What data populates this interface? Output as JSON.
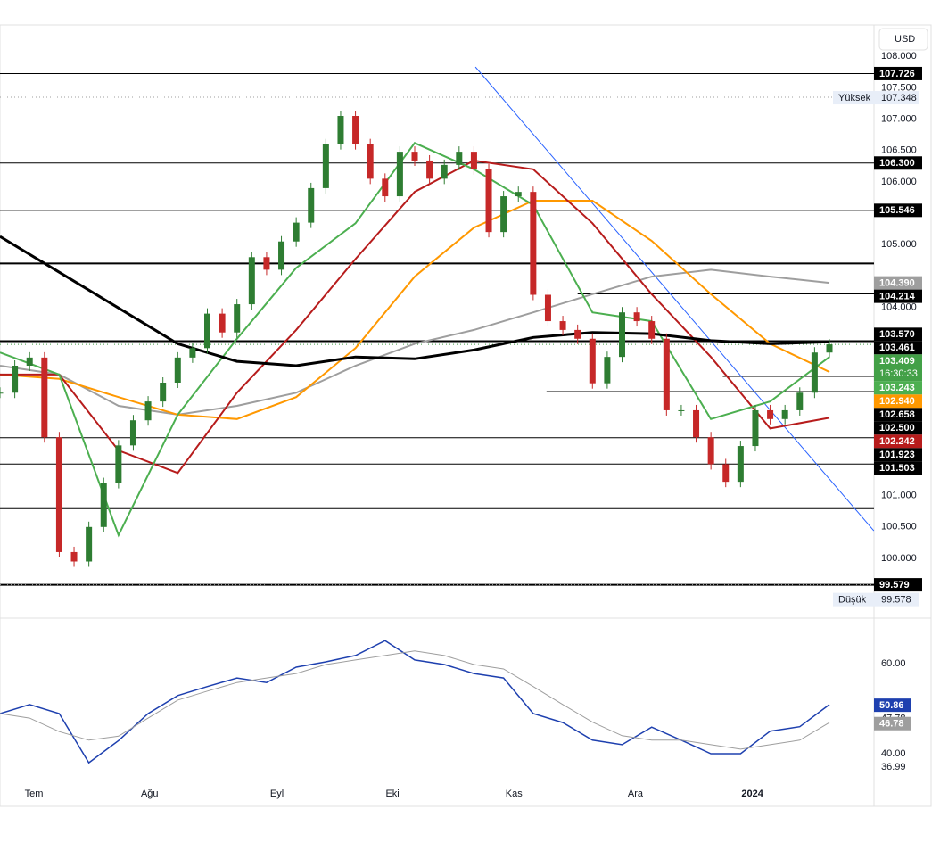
{
  "chart_data": {
    "type": "candlestick",
    "currency": "USD",
    "close": [
      102.64,
      103.07,
      103.2,
      101.93,
      100.1,
      99.95,
      100.5,
      101.2,
      101.8,
      102.2,
      102.5,
      102.8,
      103.2,
      103.35,
      103.9,
      103.6,
      104.05,
      104.8,
      104.6,
      105.05,
      105.35,
      105.9,
      106.6,
      107.05,
      106.6,
      106.05,
      105.77,
      106.48,
      106.34,
      106.05,
      106.27,
      106.48,
      106.2,
      105.2,
      105.77,
      105.84,
      104.2,
      103.78,
      103.64,
      103.5,
      102.79,
      103.21,
      103.92,
      103.78,
      103.5,
      102.36,
      102.36,
      101.93,
      101.5,
      101.22,
      101.79,
      102.36,
      102.22,
      102.36,
      102.64,
      103.28,
      103.41
    ],
    "up_color": "#2e7d32",
    "down_color": "#c62828",
    "ylim": [
      99.09,
      108.5
    ],
    "yticks": [
      {
        "value": 108,
        "label": "108.000"
      },
      {
        "value": 107.5,
        "label": "107.500"
      },
      {
        "value": 107,
        "label": "107.000"
      },
      {
        "value": 106.5,
        "label": "106.500"
      },
      {
        "value": 106,
        "label": "106.000"
      },
      {
        "value": 105,
        "label": "105.000"
      },
      {
        "value": 104,
        "label": "104.000"
      },
      {
        "value": 101,
        "label": "101.000"
      },
      {
        "value": 100.5,
        "label": "100.500"
      },
      {
        "value": 100,
        "label": "100.000"
      }
    ],
    "xticks": [
      {
        "value": 2.29,
        "label": "Tem"
      },
      {
        "value": 10.1,
        "label": "Ağu"
      },
      {
        "value": 18.7,
        "label": "Eyl"
      },
      {
        "value": 26.5,
        "label": "Eki"
      },
      {
        "value": 34.7,
        "label": "Kas"
      },
      {
        "value": 42.9,
        "label": "Ara"
      },
      {
        "value": 50.8,
        "label": "2024"
      }
    ],
    "ma_x": [
      0,
      4,
      8,
      12,
      16,
      20,
      24,
      28,
      32,
      36,
      40,
      44,
      48,
      52,
      56
    ],
    "overlays": [
      {
        "color": "#9e9e9e",
        "width": 2,
        "values": [
          103.07,
          102.93,
          102.43,
          102.29,
          102.43,
          102.64,
          103.07,
          103.42,
          103.64,
          103.92,
          104.21,
          104.49,
          104.6,
          104.49,
          104.39
        ]
      },
      {
        "color": "#ff9800",
        "width": 2,
        "values": [
          102.93,
          102.86,
          102.57,
          102.29,
          102.22,
          102.57,
          103.35,
          104.49,
          105.27,
          105.7,
          105.7,
          105.06,
          104.21,
          103.42,
          102.97
        ]
      },
      {
        "color": "#b71c1c",
        "width": 2,
        "values": [
          102.93,
          102.93,
          101.72,
          101.36,
          102.64,
          103.64,
          104.77,
          105.84,
          106.34,
          106.2,
          105.34,
          104.21,
          103.21,
          102.07,
          102.24
        ]
      },
      {
        "color": "#4caf50",
        "width": 2,
        "values": [
          103.28,
          102.93,
          100.37,
          102.29,
          103.5,
          104.63,
          105.34,
          106.62,
          106.2,
          105.63,
          103.92,
          103.78,
          102.22,
          102.5,
          103.21
        ]
      },
      {
        "color": "#000000",
        "width": 3,
        "values": [
          105.13,
          104.56,
          103.99,
          103.42,
          103.14,
          103.07,
          103.21,
          103.18,
          103.32,
          103.52,
          103.6,
          103.58,
          103.47,
          103.42,
          103.45
        ]
      }
    ],
    "trendline": {
      "color": "#2962ff",
      "x": [
        32.1,
        59.0
      ],
      "values": [
        107.83,
        100.44
      ]
    },
    "levels": [
      {
        "value": 107.726,
        "from": 0,
        "thick": false
      },
      {
        "value": 106.3,
        "from": 0,
        "thick": false
      },
      {
        "value": 105.546,
        "from": 0,
        "thick": false
      },
      {
        "value": 104.7,
        "from": 0,
        "thick": true
      },
      {
        "value": 104.214,
        "from": 39,
        "thick": false
      },
      {
        "value": 103.461,
        "from": 0,
        "thick": true
      },
      {
        "value": 102.9,
        "from": 48.8,
        "thick": false
      },
      {
        "value": 102.658,
        "from": 36.9,
        "thick": false
      },
      {
        "value": 101.923,
        "from": 0,
        "thick": false
      },
      {
        "value": 101.503,
        "from": 0,
        "thick": false
      },
      {
        "value": 100.8,
        "from": 0,
        "thick": true
      },
      {
        "value": 99.579,
        "from": 0,
        "thick": true
      }
    ],
    "price_labels": [
      {
        "value": 107.726,
        "label": "107.726",
        "color": "#000000"
      },
      {
        "value": 106.3,
        "label": "106.300",
        "color": "#000000"
      },
      {
        "value": 105.546,
        "label": "105.546",
        "color": "#000000"
      },
      {
        "value": 104.39,
        "label": "104.390",
        "color": "#9e9e9e"
      },
      {
        "value": 104.214,
        "label": "104.214",
        "color": "#000000"
      },
      {
        "value": 103.57,
        "label": "103.570",
        "color": "#000000"
      },
      {
        "value": 103.461,
        "label": "103.461",
        "color": "#000000"
      },
      {
        "value": 103.243,
        "label": "103.243",
        "color": "#4caf50"
      },
      {
        "value": 102.94,
        "label": "102.940",
        "color": "#ff9800"
      },
      {
        "value": 102.658,
        "label": "102.658",
        "color": "#000000"
      },
      {
        "value": 102.5,
        "label": "102.500",
        "color": "#000000"
      },
      {
        "value": 102.242,
        "label": "102.242",
        "color": "#b71c1c"
      },
      {
        "value": 101.923,
        "label": "101.923",
        "color": "#000000"
      },
      {
        "value": 101.503,
        "label": "101.503",
        "color": "#000000"
      },
      {
        "value": 99.579,
        "label": "99.579",
        "color": "#000000"
      }
    ],
    "current": {
      "value": 103.409,
      "label": "103.409",
      "countdown": "16:30:33",
      "color": "#43a047"
    },
    "high": {
      "text": "Yüksek",
      "value": 107.348,
      "label": "107.348"
    },
    "low": {
      "text": "Düşük",
      "value": 99.578,
      "label": "99.578"
    },
    "rsi": {
      "ylim": [
        33.07,
        69.3
      ],
      "yticks": [
        {
          "value": 60,
          "label": "60.00"
        },
        {
          "value": 47.78,
          "label": "47.78"
        },
        {
          "value": 40,
          "label": "40.00"
        },
        {
          "value": 36.99,
          "label": "36.99"
        }
      ],
      "x": [
        0,
        2,
        4,
        6,
        8,
        10,
        12,
        14,
        16,
        18,
        20,
        22,
        24,
        26,
        28,
        30,
        32,
        34,
        36,
        38,
        40,
        42,
        44,
        46,
        48,
        50,
        52,
        54,
        56
      ],
      "series": [
        {
          "color": "#1e40af",
          "values": [
            48.9,
            50.9,
            48.9,
            38.0,
            42.9,
            48.9,
            52.9,
            54.9,
            56.8,
            55.8,
            59.2,
            60.4,
            61.8,
            65.1,
            60.8,
            59.8,
            57.8,
            56.8,
            48.9,
            46.9,
            43.0,
            42.0,
            45.9,
            43.0,
            40.0,
            40.0,
            45.0,
            46.0,
            50.9
          ],
          "last": {
            "value": 50.86,
            "label": "50.86"
          }
        },
        {
          "color": "#9e9e9e",
          "values": [
            48.9,
            47.9,
            44.9,
            43.0,
            43.9,
            47.9,
            51.9,
            53.9,
            55.8,
            56.8,
            57.8,
            59.8,
            60.8,
            61.8,
            62.8,
            61.8,
            59.8,
            58.8,
            54.9,
            50.9,
            47.0,
            44.0,
            43.0,
            43.0,
            42.0,
            41.0,
            42.0,
            43.0,
            46.9
          ],
          "last": {
            "value": 46.78,
            "label": "46.78"
          }
        }
      ]
    }
  }
}
